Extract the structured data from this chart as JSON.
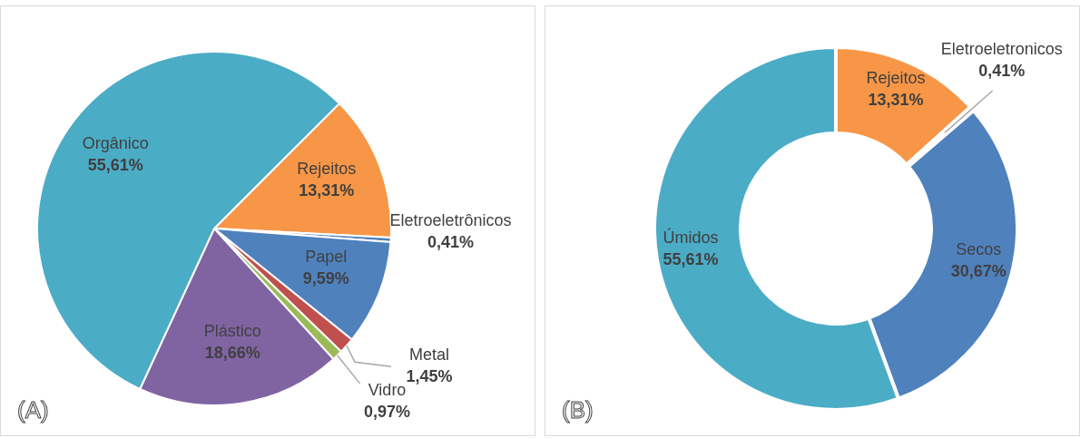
{
  "chart_data": [
    {
      "type": "pie",
      "categories": [
        "Rejeitos",
        "Eletroeletrônicos",
        "Papel",
        "Metal",
        "Vidro",
        "Plástico",
        "Orgânico"
      ],
      "values": [
        13.31,
        0.41,
        9.59,
        1.45,
        0.97,
        18.66,
        55.61
      ],
      "colors": [
        "#f79646",
        "#4f81bd",
        "#4f81bd",
        "#c0504d",
        "#9bbb59",
        "#8064a2",
        "#4bacc6"
      ],
      "value_labels": [
        "13,31%",
        "0,41%",
        "9,59%",
        "1,45%",
        "0,97%",
        "18,66%",
        "55,61%"
      ],
      "annotations": [
        "(A)"
      ]
    },
    {
      "type": "donut",
      "categories": [
        "Rejeitos",
        "Eletroeletronicos",
        "Secos",
        "Úmidos"
      ],
      "values": [
        13.31,
        0.41,
        30.67,
        55.61
      ],
      "colors": [
        "#f79646",
        "#c0504d",
        "#4f81bd",
        "#4bacc6"
      ],
      "value_labels": [
        "13,31%",
        "0,41%",
        "30,67%",
        "55,61%"
      ],
      "annotations": [
        "(B)"
      ]
    }
  ]
}
